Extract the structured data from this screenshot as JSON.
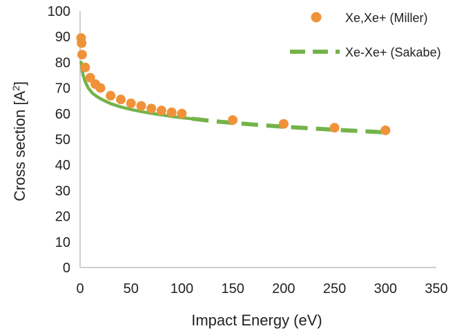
{
  "chart_data": {
    "type": "scatter",
    "xlabel": "Impact Energy (eV)",
    "ylabel": "Cross section [A",
    "ylabel_sup": "2",
    "ylabel_end": "]",
    "xlim": [
      0,
      350
    ],
    "ylim": [
      0,
      100
    ],
    "xticks": [
      0,
      50,
      100,
      150,
      200,
      250,
      300,
      350
    ],
    "yticks": [
      0,
      10,
      20,
      30,
      40,
      50,
      60,
      70,
      80,
      90,
      100
    ],
    "grid": false,
    "legend_position": "top-right",
    "series": [
      {
        "name": "Xe,Xe+ (Miller)",
        "kind": "markers",
        "color": "#F0923A",
        "x": [
          1,
          1.5,
          2,
          5,
          10,
          15,
          20,
          30,
          40,
          50,
          60,
          70,
          80,
          90,
          100,
          150,
          200,
          250,
          300
        ],
        "y": [
          89.5,
          87.5,
          83,
          78,
          74,
          71.5,
          70,
          67,
          65.5,
          64,
          63,
          62,
          61.2,
          60.5,
          60,
          57.5,
          56,
          54.5,
          53.5
        ]
      },
      {
        "name": "Xe-Xe+ (Sakabe)",
        "kind": "line",
        "color": "#74B34A",
        "x": [
          1,
          2,
          3,
          5,
          8,
          12,
          16,
          20,
          30,
          40,
          50,
          60,
          70,
          80,
          90,
          100,
          110,
          130,
          150,
          175,
          200,
          225,
          250,
          275,
          300
        ],
        "y": [
          80,
          77,
          75,
          72.5,
          70,
          68,
          66.8,
          65.8,
          63.9,
          62.6,
          61.6,
          60.8,
          60.1,
          59.5,
          58.9,
          58.4,
          58,
          57.1,
          56.4,
          55.6,
          54.9,
          54.3,
          53.7,
          53.2,
          52.7
        ]
      }
    ]
  }
}
